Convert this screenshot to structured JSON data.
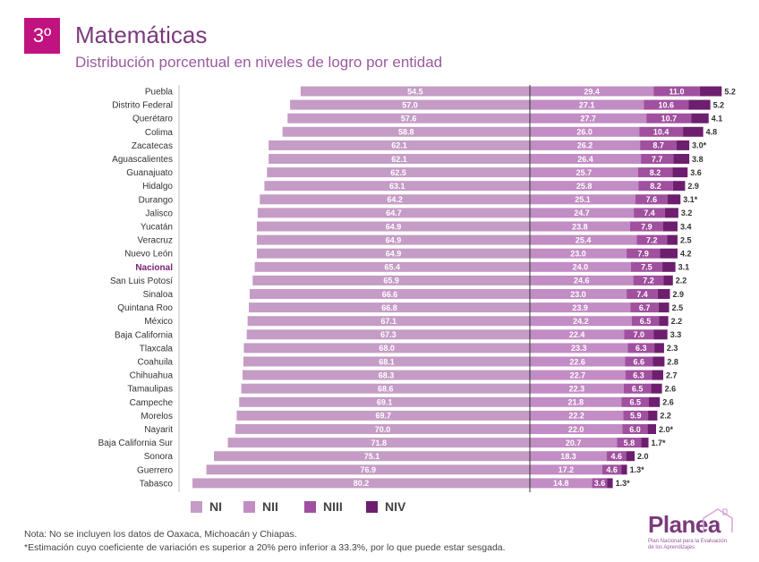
{
  "header": {
    "grade": "3º",
    "title": "Matemáticas",
    "subtitle": "Distribución porcentual en niveles de logro por entidad"
  },
  "colors": {
    "NI": "#c59cc6",
    "NII": "#c28cc4",
    "NIII": "#a0509f",
    "NIV": "#6d1e6e",
    "highlight": "#7a1f73"
  },
  "legend": {
    "labels": [
      "NI",
      "NII",
      "NIII",
      "NIV"
    ]
  },
  "chart_data": {
    "type": "bar",
    "orientation": "horizontal",
    "stacked": "diverging",
    "categories": [
      "Puebla",
      "Distrito Federal",
      "Querétaro",
      "Colima",
      "Zacatecas",
      "Aguascalientes",
      "Guanajuato",
      "Hidalgo",
      "Durango",
      "Jalisco",
      "Yucatán",
      "Veracruz",
      "Nuevo León",
      "Nacional",
      "San Luis Potosí",
      "Sinaloa",
      "Quintana Roo",
      "México",
      "Baja California",
      "Tlaxcala",
      "Coahuila",
      "Chihuahua",
      "Tamaulipas",
      "Campeche",
      "Morelos",
      "Nayarit",
      "Baja California Sur",
      "Sonora",
      "Guerrero",
      "Tabasco"
    ],
    "highlight_category": "Nacional",
    "series": [
      {
        "name": "NI",
        "direction": "left",
        "values": [
          54.5,
          57.0,
          57.6,
          58.8,
          62.1,
          62.1,
          62.5,
          63.1,
          64.2,
          64.7,
          64.9,
          64.9,
          64.9,
          65.4,
          65.9,
          66.6,
          66.8,
          67.1,
          67.3,
          68.0,
          68.1,
          68.3,
          68.6,
          69.1,
          69.7,
          70.0,
          71.8,
          75.1,
          76.9,
          80.2
        ]
      },
      {
        "name": "NII",
        "direction": "right",
        "values": [
          29.4,
          27.1,
          27.7,
          26.0,
          26.2,
          26.4,
          25.7,
          25.8,
          25.1,
          24.7,
          23.8,
          25.4,
          23.0,
          24.0,
          24.6,
          23.0,
          23.9,
          24.2,
          22.4,
          23.3,
          22.6,
          22.7,
          22.3,
          21.8,
          22.2,
          22.0,
          20.7,
          18.3,
          17.2,
          14.8
        ]
      },
      {
        "name": "NIII",
        "direction": "right",
        "values": [
          11.0,
          10.6,
          10.7,
          10.4,
          8.7,
          7.7,
          8.2,
          8.2,
          7.6,
          7.4,
          7.9,
          7.2,
          7.9,
          7.5,
          7.2,
          7.4,
          6.7,
          6.5,
          7.0,
          6.3,
          6.6,
          6.3,
          6.5,
          6.5,
          5.9,
          6.0,
          5.8,
          4.6,
          4.6,
          3.6
        ]
      },
      {
        "name": "NIV",
        "direction": "right",
        "values": [
          5.2,
          5.2,
          4.1,
          4.8,
          3.0,
          3.8,
          3.6,
          2.9,
          3.1,
          3.2,
          3.4,
          2.5,
          4.2,
          3.1,
          2.2,
          2.9,
          2.5,
          2.2,
          3.3,
          2.3,
          2.8,
          2.7,
          2.6,
          2.6,
          2.2,
          2.0,
          1.7,
          2.0,
          1.3,
          1.3
        ]
      }
    ],
    "niv_labels": [
      "5.2",
      "5.2",
      "4.1",
      "4.8",
      "3.0*",
      "3.8",
      "3.6",
      "2.9",
      "3.1*",
      "3.2",
      "3.4",
      "2.5",
      "4.2",
      "3.1",
      "2.2",
      "2.9",
      "2.5",
      "2.2",
      "3.3",
      "2.3",
      "2.8",
      "2.7",
      "2.6",
      "2.6",
      "2.2",
      "2.0*",
      "1.7*",
      "2.0",
      "1.3*",
      "1.3*"
    ],
    "value_labels": {
      "NI": [
        "54.5",
        "57.0",
        "57.6",
        "58.8",
        "62.1",
        "62.1",
        "62.5",
        "63.1",
        "64.2",
        "64.7",
        "64.9",
        "64.9",
        "64.9",
        "65.4",
        "65.9",
        "66.6",
        "66.8",
        "67.1",
        "67.3",
        "68.0",
        "68.1",
        "68.3",
        "68.6",
        "69.1",
        "69.7",
        "70.0",
        "71.8",
        "75.1",
        "76.9",
        "80.2"
      ],
      "NII": [
        "29.4",
        "27.1",
        "27.7",
        "26.0",
        "26.2",
        "26.4",
        "25.7",
        "25.8",
        "25.1",
        "24.7",
        "23.8",
        "25.4",
        "23.0",
        "24.0",
        "24.6",
        "23.0",
        "23.9",
        "24.2",
        "22.4",
        "23.3",
        "22.6",
        "22.7",
        "22.3",
        "21.8",
        "22.2",
        "22.0",
        "20.7",
        "18.3",
        "17.2",
        "14.8"
      ],
      "NIII": [
        "11.0",
        "10.6",
        "10.7",
        "10.4",
        "8.7",
        "7.7",
        "8.2",
        "8.2",
        "7.6",
        "7.4",
        "7.9",
        "7.2",
        "7.9",
        "7.5",
        "7.2",
        "7.4",
        "6.7",
        "6.5",
        "7.0",
        "6.3",
        "6.6",
        "6.3",
        "6.5",
        "6.5",
        "5.9",
        "6.0",
        "5.8",
        "4.6",
        "4.6",
        "3.6"
      ]
    }
  },
  "notes": {
    "line1": "Nota: No se incluyen los datos de Oaxaca, Michoacán y Chiapas.",
    "line2": "*Estimación cuyo coeficiente de variación es superior a 20% pero inferior a 33.3%, por lo que puede estar sesgada."
  },
  "logo": {
    "name": "Planea",
    "tagline_1": "Plan Nacional para la Evaluación",
    "tagline_2": "de los Aprendizajes"
  }
}
